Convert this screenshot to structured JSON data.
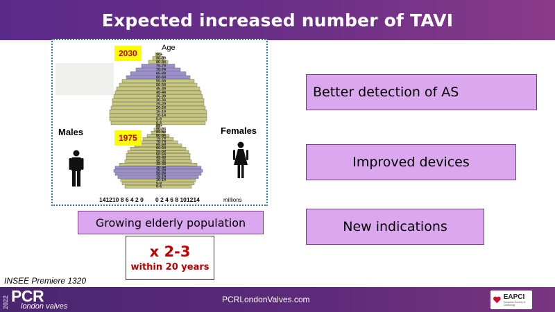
{
  "slide": {
    "title": "Expected increased number of TAVI"
  },
  "pyramid": {
    "age_heading": "Age",
    "year_top": "2030",
    "year_bottom": "1975",
    "male_label": "Males",
    "female_label": "Females",
    "age_groups_top": [
      "90+",
      "85-89",
      "80-84",
      "75-79",
      "70-74",
      "65-69",
      "60-64",
      "55-59",
      "50-54",
      "45-49",
      "40-44",
      "35-39",
      "30-34",
      "25-29",
      "20-24",
      "15-19",
      "10-14",
      "5-9",
      "0-4"
    ],
    "age_groups_bottom": [
      "95+",
      "90-94",
      "85-89",
      "80-84",
      "75-79",
      "70-74",
      "65-69",
      "60-64",
      "55-59",
      "50-54",
      "45-49",
      "40-44",
      "35-39",
      "30-34",
      "25-29",
      "20-24",
      "15-19",
      "10-14",
      "5-9",
      "0-4"
    ],
    "axis_left_ticks": "141210 8  6  4  2  0",
    "axis_right_ticks": "0  2  4  6  8 101214",
    "axis_unit": "millions",
    "colors": {
      "olive_bar": "#c8c878",
      "lavender_bar": "#9b8fd1",
      "outline": "#555555"
    }
  },
  "boxes": {
    "growing": "Growing elderly population",
    "detection": "Better detection of AS",
    "devices": "Improved devices",
    "indications": "New indications"
  },
  "multiplier": {
    "main": "x 2-3",
    "sub": "within 20 years"
  },
  "source": "INSEE Premiere 1320",
  "footer": {
    "year": "2022",
    "brand": "PCR",
    "subbrand": "london valves",
    "url": "PCRLondonValves.com",
    "partner": "EAPCI",
    "partner_sub": "European Society of Cardiology"
  },
  "colors": {
    "title_bg": "#6b2f86",
    "box_fill": "#dba8f0",
    "accent_red": "#c00000",
    "badge_yellow": "#ffff00"
  }
}
